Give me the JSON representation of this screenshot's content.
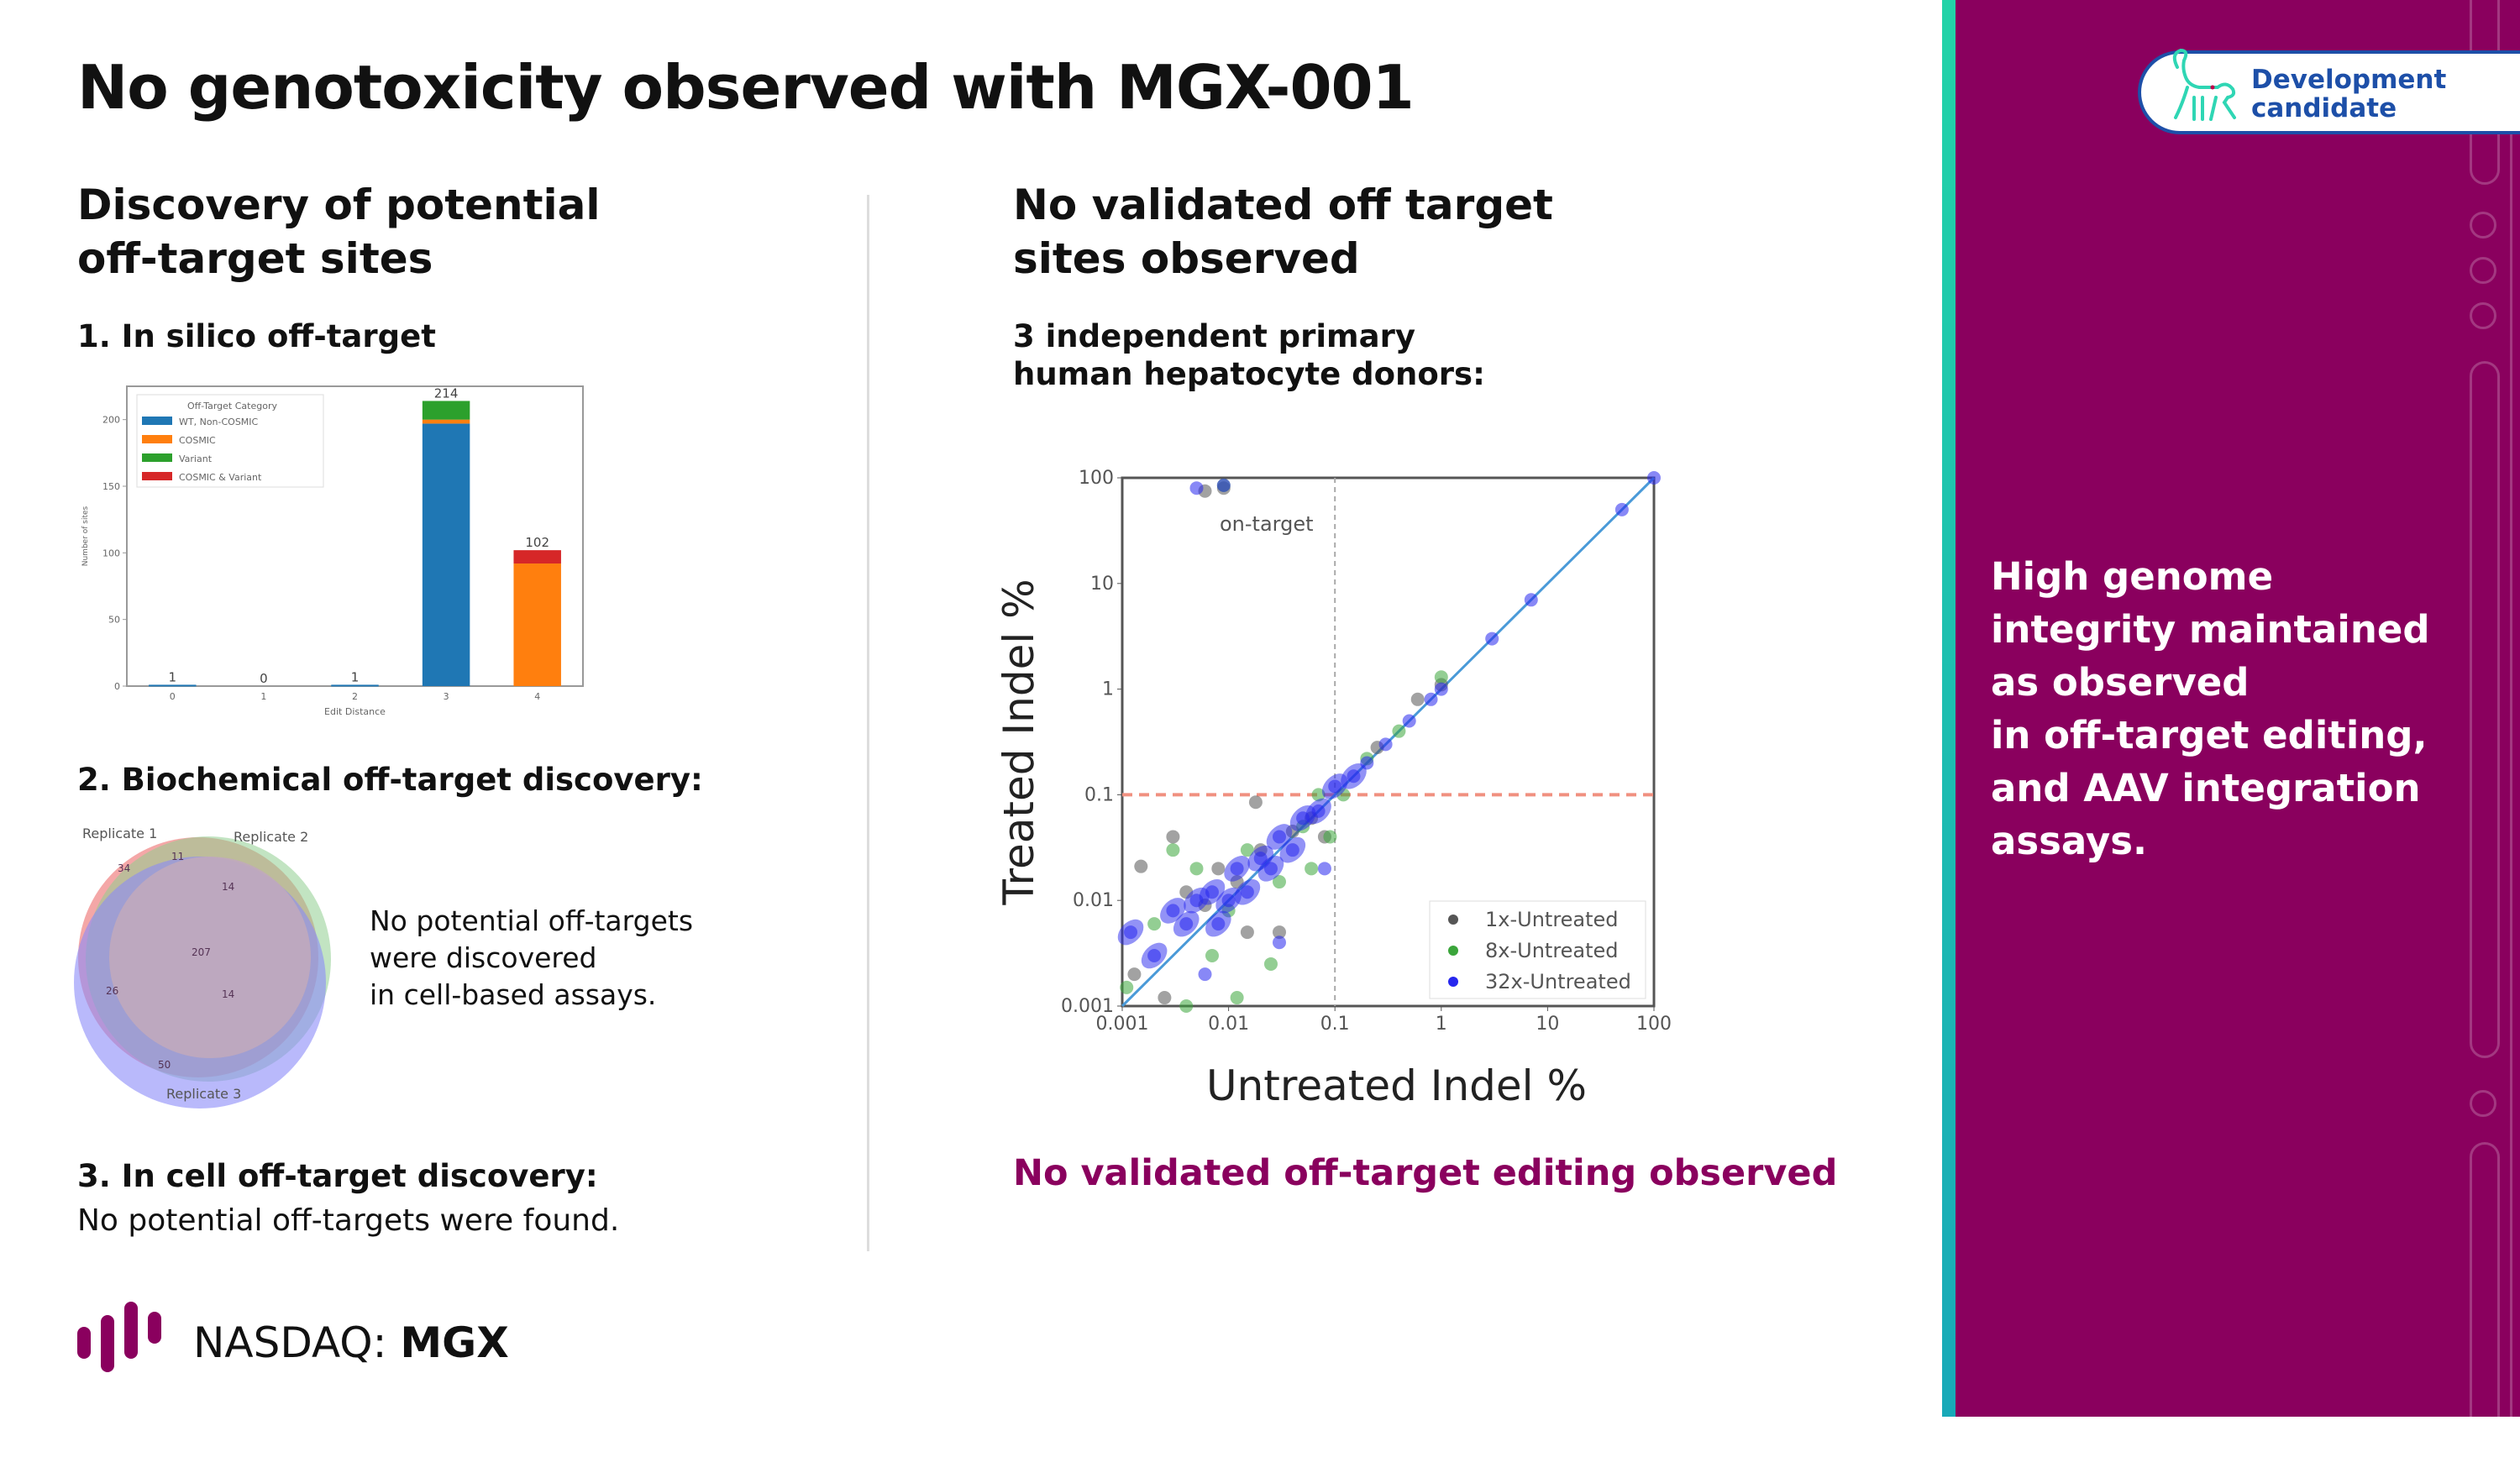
{
  "title": "No genotoxicity observed with MGX-001",
  "left": {
    "heading": [
      "Discovery of potential",
      "off-target sites"
    ],
    "step1": "1. In silico off-target",
    "step2": "2. Biochemical off-target discovery:",
    "step2_note": [
      "No potential off-targets",
      "were discovered",
      "in cell-based assays."
    ],
    "step3": "3. In cell off-target discovery:",
    "step3_note": "No potential off-targets were found."
  },
  "right": {
    "heading": [
      "No validated off target",
      "sites observed"
    ],
    "subheading": [
      "3 independent primary",
      "human hepatocyte donors:"
    ],
    "finding": "No validated off-target editing observed"
  },
  "panel": {
    "badge": [
      "Development",
      "candidate"
    ],
    "badge_icon": "monkey-icon",
    "claim": [
      "High genome",
      "integrity maintained",
      "as observed",
      "in off-target editing,",
      "and AAV integration",
      "assays."
    ],
    "colors": {
      "panel": "#8a005e",
      "strip": "#22d3a8",
      "badge": "#1d4fa8"
    }
  },
  "footer": {
    "exchange": "NASDAQ:",
    "ticker": "MGX",
    "logo_color": "#8a005e"
  },
  "chart_data": [
    {
      "type": "bar",
      "stacked": true,
      "xlabel": "Edit Distance",
      "ylabel": "Number of sites",
      "ylim": [
        0,
        225
      ],
      "yticks": [
        0,
        50,
        100,
        150,
        200
      ],
      "categories": [
        "0",
        "1",
        "2",
        "3",
        "4"
      ],
      "legend": {
        "title": "Off-Target Category",
        "placement": "top-left"
      },
      "series": [
        {
          "name": "WT, Non-COSMIC",
          "color": "#1f77b4",
          "values": [
            1,
            0,
            1,
            197,
            0
          ]
        },
        {
          "name": "COSMIC",
          "color": "#ff7f0e",
          "values": [
            0,
            0,
            0,
            3,
            92
          ]
        },
        {
          "name": "Variant",
          "color": "#2ca02c",
          "values": [
            0,
            0,
            0,
            14,
            0
          ]
        },
        {
          "name": "COSMIC & Variant",
          "color": "#d62728",
          "values": [
            0,
            0,
            0,
            0,
            10
          ]
        }
      ],
      "totals": [
        1,
        0,
        1,
        214,
        102
      ]
    },
    {
      "type": "venn",
      "sets": [
        "Replicate 1",
        "Replicate 2",
        "Replicate 3"
      ],
      "regions": {
        "1only": 34,
        "1and2": 11,
        "2only": 14,
        "all": 207,
        "1and3": 26,
        "2and3": 14,
        "3only": 50
      }
    },
    {
      "type": "scatter",
      "xlabel": "Untreated Indel %",
      "ylabel": "Treated Indel %",
      "xscale": "log",
      "yscale": "log",
      "xlim": [
        0.001,
        100
      ],
      "ylim": [
        0.001,
        100
      ],
      "xticks": [
        "0.001",
        "0.01",
        "0.1",
        "1",
        "10",
        "100"
      ],
      "yticks": [
        "0.001",
        "0.01",
        "0.1",
        "1",
        "10",
        "100"
      ],
      "threshold_x": 0.1,
      "threshold_y": 0.1,
      "annotation": "on-target",
      "legend_placement": "bottom-right",
      "series": [
        {
          "name": "1x-Untreated",
          "color": "#555555",
          "points": [
            [
              0.006,
              75
            ],
            [
              0.009,
              80
            ],
            [
              0.0013,
              0.002
            ],
            [
              0.0015,
              0.021
            ],
            [
              0.003,
              0.04
            ],
            [
              0.004,
              0.012
            ],
            [
              0.006,
              0.009
            ],
            [
              0.008,
              0.02
            ],
            [
              0.012,
              0.015
            ],
            [
              0.018,
              0.085
            ],
            [
              0.02,
              0.03
            ],
            [
              0.03,
              0.005
            ],
            [
              0.04,
              0.045
            ],
            [
              0.06,
              0.06
            ],
            [
              0.08,
              0.04
            ],
            [
              0.25,
              0.28
            ],
            [
              0.6,
              0.8
            ],
            [
              1,
              1.1
            ],
            [
              0.0025,
              0.0012
            ],
            [
              0.015,
              0.005
            ]
          ]
        },
        {
          "name": "8x-Untreated",
          "color": "#3aa53a",
          "points": [
            [
              0.009,
              85
            ],
            [
              0.002,
              0.006
            ],
            [
              0.0011,
              0.0015
            ],
            [
              0.003,
              0.03
            ],
            [
              0.005,
              0.02
            ],
            [
              0.007,
              0.003
            ],
            [
              0.01,
              0.008
            ],
            [
              0.015,
              0.03
            ],
            [
              0.025,
              0.0025
            ],
            [
              0.03,
              0.015
            ],
            [
              0.05,
              0.05
            ],
            [
              0.07,
              0.1
            ],
            [
              0.09,
              0.04
            ],
            [
              0.12,
              0.1
            ],
            [
              0.2,
              0.22
            ],
            [
              0.4,
              0.4
            ],
            [
              1,
              1.3
            ],
            [
              0.012,
              0.0012
            ],
            [
              0.004,
              0.001
            ],
            [
              0.06,
              0.02
            ]
          ]
        },
        {
          "name": "32x-Untreated",
          "color": "#2626ee",
          "points": [
            [
              0.005,
              80
            ],
            [
              0.009,
              85
            ],
            [
              0.0012,
              0.005
            ],
            [
              0.002,
              0.003
            ],
            [
              0.003,
              0.008
            ],
            [
              0.004,
              0.006
            ],
            [
              0.005,
              0.01
            ],
            [
              0.007,
              0.012
            ],
            [
              0.008,
              0.006
            ],
            [
              0.01,
              0.01
            ],
            [
              0.012,
              0.02
            ],
            [
              0.015,
              0.012
            ],
            [
              0.02,
              0.025
            ],
            [
              0.025,
              0.02
            ],
            [
              0.03,
              0.04
            ],
            [
              0.04,
              0.03
            ],
            [
              0.05,
              0.06
            ],
            [
              0.07,
              0.07
            ],
            [
              0.1,
              0.12
            ],
            [
              0.15,
              0.15
            ],
            [
              0.2,
              0.2
            ],
            [
              0.3,
              0.3
            ],
            [
              0.5,
              0.5
            ],
            [
              0.8,
              0.8
            ],
            [
              1,
              1
            ],
            [
              3,
              3
            ],
            [
              7,
              7
            ],
            [
              50,
              50
            ],
            [
              100,
              100
            ],
            [
              0.08,
              0.02
            ],
            [
              0.03,
              0.004
            ],
            [
              0.006,
              0.002
            ]
          ]
        }
      ]
    }
  ]
}
